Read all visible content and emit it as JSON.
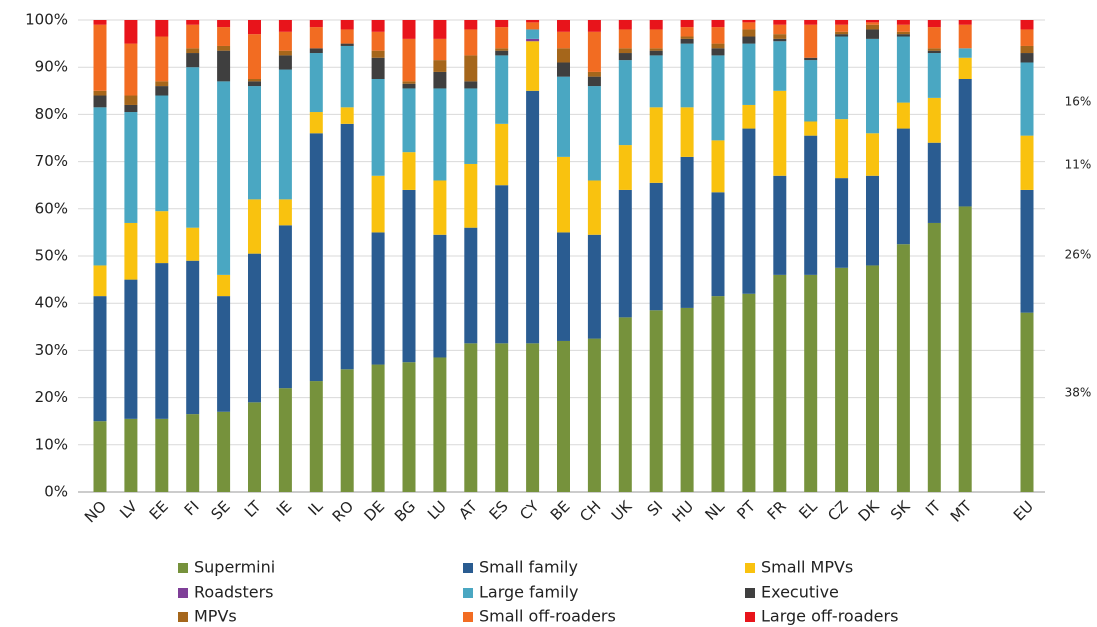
{
  "chart_data": {
    "type": "bar",
    "stacked": true,
    "categories": [
      "NO",
      "LV",
      "EE",
      "FI",
      "SE",
      "LT",
      "IE",
      "IL",
      "RO",
      "DE",
      "BG",
      "LU",
      "AT",
      "ES",
      "CY",
      "BE",
      "CH",
      "UK",
      "SI",
      "HU",
      "NL",
      "PT",
      "FR",
      "EL",
      "CZ",
      "DK",
      "SK",
      "IT",
      "MT",
      null,
      "EU"
    ],
    "series": [
      {
        "name": "Supermini",
        "color": "#76923c",
        "values": [
          15,
          15.5,
          15.5,
          16.5,
          17,
          19,
          22,
          23.5,
          26,
          27,
          27.5,
          28.5,
          31.5,
          31.5,
          31.5,
          32,
          32.5,
          37,
          38.5,
          39,
          41.5,
          42,
          46,
          46,
          47.5,
          48,
          52.5,
          57,
          60.5,
          null,
          38
        ]
      },
      {
        "name": "Small family",
        "color": "#2a5c91",
        "values": [
          26.5,
          29.5,
          33,
          32.5,
          24.5,
          31.5,
          34.5,
          52.5,
          52,
          28,
          36.5,
          26,
          24.5,
          33.5,
          53.5,
          23,
          22,
          27,
          27,
          32,
          22,
          35,
          21,
          29.5,
          19,
          19,
          24.5,
          17,
          27,
          null,
          26
        ]
      },
      {
        "name": "Small MPVs",
        "color": "#f9c20f",
        "values": [
          6.5,
          12,
          11,
          7,
          4.5,
          11.5,
          5.5,
          4.5,
          3.5,
          12,
          8,
          11.5,
          13.5,
          13,
          10.5,
          16,
          11.5,
          9.5,
          16,
          10.5,
          11,
          5,
          18,
          3,
          12.5,
          9,
          5.5,
          9.5,
          4.5,
          null,
          11.5
        ]
      },
      {
        "name": "Roadsters",
        "color": "#7f3f98",
        "values": [
          0,
          0,
          0,
          0,
          0,
          0,
          0,
          0,
          0,
          0,
          0,
          0,
          0,
          0,
          0.5,
          0,
          0,
          0,
          0,
          0,
          0,
          0,
          0,
          0,
          0,
          0,
          0,
          0,
          0,
          null,
          0
        ]
      },
      {
        "name": "Large family",
        "color": "#4aa7c2",
        "values": [
          33.5,
          23.5,
          24.5,
          34,
          41,
          24,
          27.5,
          12.5,
          13,
          20.5,
          13.5,
          19.5,
          16,
          14.5,
          2,
          17,
          20,
          18,
          11,
          13.5,
          18,
          13,
          10.5,
          13,
          17.5,
          20,
          14,
          9.5,
          2,
          null,
          15.5
        ]
      },
      {
        "name": "Executive",
        "color": "#3f3f3f",
        "values": [
          2.5,
          1.5,
          2,
          3,
          6.5,
          1,
          3,
          1,
          0.5,
          4.5,
          1,
          3.5,
          1.5,
          1,
          0,
          3,
          2,
          1.5,
          1,
          1,
          1.5,
          1.5,
          0.5,
          0.5,
          0.5,
          2,
          0.5,
          0.5,
          0,
          null,
          2
        ]
      },
      {
        "name": "MPVs",
        "color": "#a5661b",
        "values": [
          1,
          2,
          1,
          1,
          1,
          0.5,
          1,
          0,
          0,
          1.5,
          0.5,
          2.5,
          5.5,
          0.5,
          0,
          3,
          1,
          1,
          0.5,
          0.5,
          1,
          1.5,
          1,
          0,
          0.5,
          1,
          0.5,
          0.5,
          0,
          null,
          1.5
        ]
      },
      {
        "name": "Small off-roaders",
        "color": "#f26c22",
        "values": [
          14,
          11,
          9.5,
          5,
          4,
          9.5,
          4,
          4.5,
          3,
          4,
          9,
          4.5,
          5.5,
          4.5,
          1.5,
          3.5,
          8.5,
          4,
          4,
          2,
          3.5,
          1.5,
          2,
          7,
          1.5,
          0.5,
          1.5,
          4.5,
          5,
          null,
          3.5
        ]
      },
      {
        "name": "Large off-roaders",
        "color": "#e8141b",
        "values": [
          1,
          5,
          3.5,
          1,
          1.5,
          3,
          2.5,
          1.5,
          2,
          2.5,
          4,
          4,
          2,
          1.5,
          0.5,
          2.5,
          2.5,
          2,
          2,
          1.5,
          1.5,
          0.5,
          1,
          1,
          1,
          0.5,
          1,
          1.5,
          1,
          null,
          2
        ]
      }
    ],
    "ylim": [
      0,
      100
    ],
    "yticks": [
      {
        "value": 0,
        "label": "0%"
      },
      {
        "value": 10,
        "label": "10%"
      },
      {
        "value": 20,
        "label": "20%"
      },
      {
        "value": 30,
        "label": "30%"
      },
      {
        "value": 40,
        "label": "40%"
      },
      {
        "value": 50,
        "label": "50%"
      },
      {
        "value": 60,
        "label": "60%"
      },
      {
        "value": 70,
        "label": "70%"
      },
      {
        "value": 80,
        "label": "80%"
      },
      {
        "value": 90,
        "label": "90%"
      },
      {
        "value": 100,
        "label": "100%"
      }
    ],
    "grid": true,
    "annotations": [
      "16%",
      "11%",
      "26%",
      "38%"
    ]
  }
}
